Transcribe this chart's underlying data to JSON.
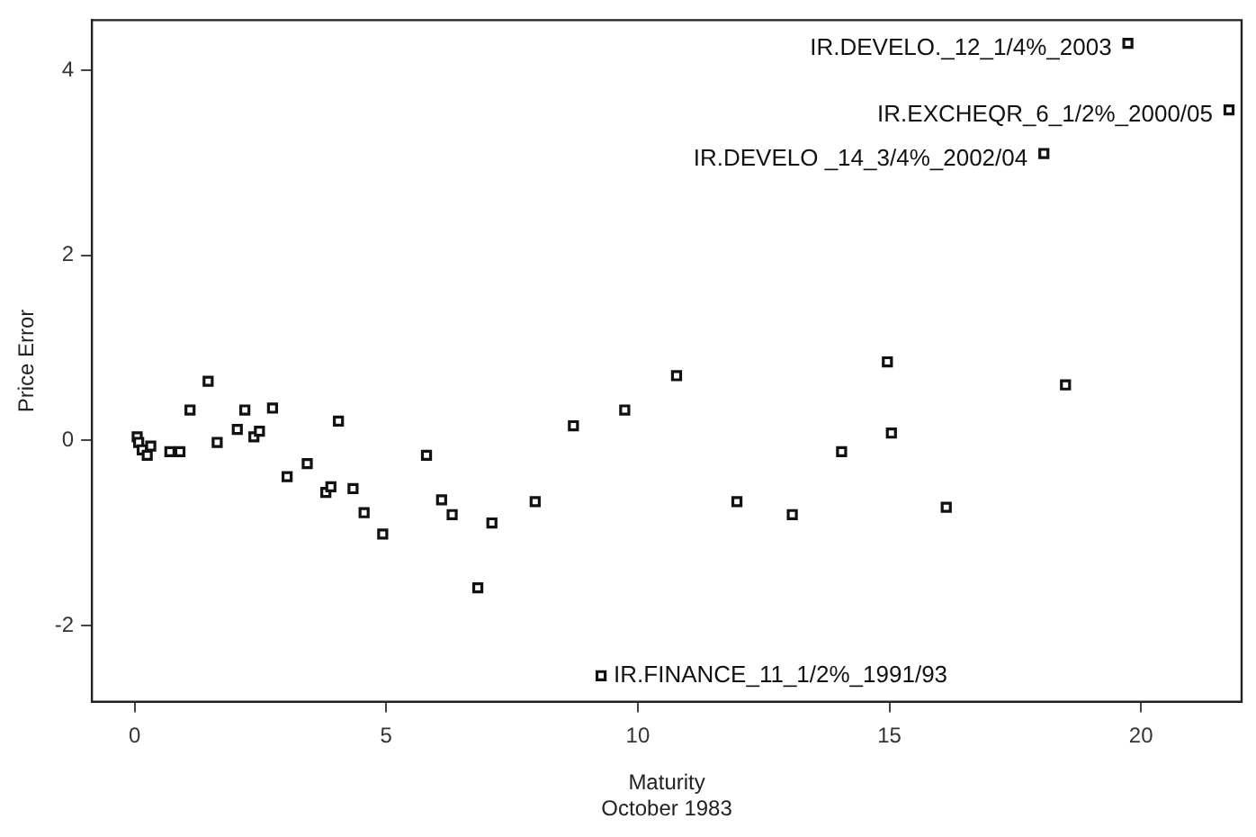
{
  "chart_data": {
    "type": "scatter",
    "xlabel": "Maturity\nOctober 1983",
    "ylabel": "Price Error",
    "marker": "square",
    "grid": false,
    "xlim": [
      -0.85,
      22
    ],
    "xticks": [
      0,
      5,
      10,
      15,
      20
    ],
    "ylim": [
      -2.82,
      4.54
    ],
    "yticks": [
      -2,
      0,
      2,
      4
    ],
    "series": [
      {
        "color": "#111111",
        "x": [
          0.05,
          0.08,
          0.15,
          0.25,
          0.32,
          0.7,
          0.9,
          1.1,
          1.46,
          1.64,
          2.04,
          2.19,
          2.37,
          2.48,
          2.74,
          3.03,
          3.43,
          3.8,
          3.9,
          4.05,
          4.34,
          4.56,
          4.93,
          5.8,
          6.1,
          6.31,
          6.82,
          7.1,
          7.96,
          8.72,
          9.27,
          9.74,
          10.77,
          11.97,
          13.07,
          14.05,
          14.96,
          15.04,
          16.13,
          18.5,
          18.07,
          19.74,
          21.75
        ],
        "values": [
          0.04,
          -0.02,
          -0.1,
          -0.16,
          -0.06,
          -0.12,
          -0.12,
          0.33,
          0.64,
          -0.02,
          0.12,
          0.33,
          0.04,
          0.1,
          0.35,
          -0.39,
          -0.25,
          -0.56,
          -0.5,
          0.21,
          -0.52,
          -0.78,
          -1.01,
          -0.16,
          -0.64,
          -0.8,
          -1.59,
          -0.89,
          -0.66,
          0.16,
          -2.54,
          0.33,
          0.7,
          -0.66,
          -0.8,
          -0.12,
          0.85,
          0.08,
          -0.72,
          0.6,
          3.1,
          4.29,
          3.57
        ]
      }
    ],
    "annotations": [
      {
        "text": "IR.DEVELO._12_1/4%_2003",
        "x": 19.74,
        "y": 4.29
      },
      {
        "text": "IR.EXCHEQR_6_1/2%_2000/05",
        "x": 21.75,
        "y": 3.57
      },
      {
        "text": "IR.DEVELO _14_3/4%_2002/04",
        "x": 18.07,
        "y": 3.1
      },
      {
        "text": "IR.FINANCE_11_1/2%_1991/93",
        "x": 9.27,
        "y": -2.54
      }
    ]
  }
}
